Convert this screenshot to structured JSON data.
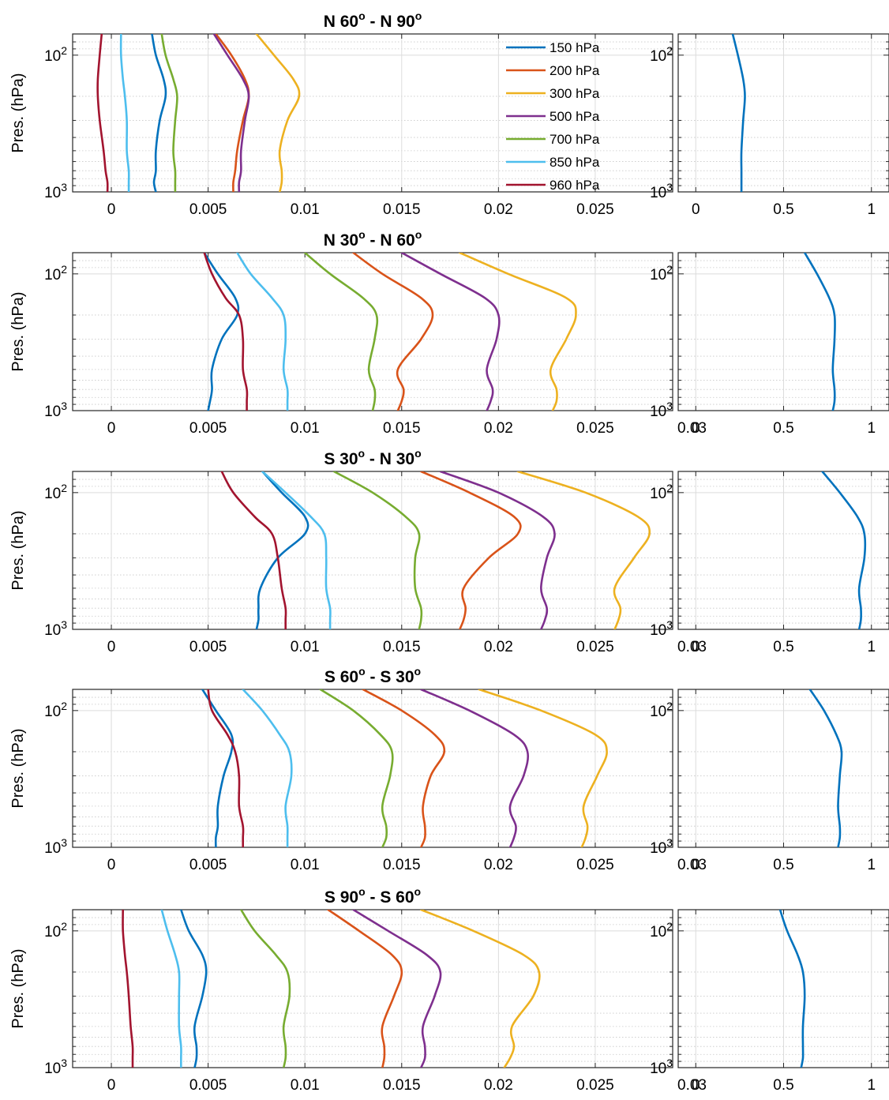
{
  "chart_data": {
    "type": "line",
    "y_axis": {
      "label": "Pres. (hPa)",
      "scale": "log",
      "range_hPa": [
        1000,
        70
      ],
      "reversed": true,
      "tick_labels": [
        "10^2",
        "10^3"
      ]
    },
    "grid": true,
    "legend": {
      "placement": "top-right",
      "entries": [
        "150 hPa",
        "200 hPa",
        "300 hPa",
        "500 hPa",
        "700 hPa",
        "850 hPa",
        "960 hPa"
      ]
    },
    "colors": {
      "150 hPa": "#0072BD",
      "200 hPa": "#D95319",
      "300 hPa": "#EDB120",
      "500 hPa": "#7E2F8E",
      "700 hPa": "#77AC30",
      "850 hPa": "#4DBEEE",
      "960 hPa": "#A2142F",
      "axis": "#262626",
      "grid": "#dcdcdc"
    },
    "pressure_levels_hPa": [
      70,
      100,
      150,
      200,
      300,
      500,
      700,
      850,
      1000
    ],
    "left_xlim": [
      -0.002,
      0.029
    ],
    "right_xlim": [
      -0.1,
      1.1
    ],
    "right_xticks": [
      0,
      0.5,
      1
    ],
    "right_xtick_labels": [
      "0",
      "0.5",
      "1"
    ],
    "panels": [
      {
        "title": "N 60",
        "title_tail": " - N 90",
        "left_xticks": [
          0,
          0.005,
          0.01,
          0.015,
          0.02,
          0.025
        ],
        "left_xtick_labels": [
          "0",
          "0.005",
          "0.01",
          "0.015",
          "0.02",
          "0.025"
        ],
        "series": [
          {
            "name": "150 hPa",
            "values": [
              0.0021,
              0.0023,
              0.0027,
              0.0028,
              0.0025,
              0.0023,
              0.0023,
              0.0022,
              0.0023
            ]
          },
          {
            "name": "200 hPa",
            "values": [
              0.0054,
              0.0062,
              0.0069,
              0.0071,
              0.0068,
              0.0065,
              0.0064,
              0.0063,
              0.0063
            ]
          },
          {
            "name": "300 hPa",
            "values": [
              0.0075,
              0.0084,
              0.0094,
              0.0097,
              0.0091,
              0.0087,
              0.0088,
              0.0088,
              0.0087
            ]
          },
          {
            "name": "500 hPa",
            "values": [
              0.0053,
              0.006,
              0.0068,
              0.0071,
              0.0069,
              0.0067,
              0.0067,
              0.0066,
              0.0066
            ]
          },
          {
            "name": "700 hPa",
            "values": [
              0.0026,
              0.0028,
              0.0032,
              0.0034,
              0.0033,
              0.0032,
              0.0033,
              0.0033,
              0.0033
            ]
          },
          {
            "name": "850 hPa",
            "values": [
              0.0005,
              0.0005,
              0.0006,
              0.0007,
              0.0008,
              0.0008,
              0.0009,
              0.0009,
              0.0009
            ]
          },
          {
            "name": "960 hPa",
            "values": [
              -0.0005,
              -0.0006,
              -0.0007,
              -0.0007,
              -0.0006,
              -0.0004,
              -0.0003,
              -0.0002,
              -0.0002
            ]
          }
        ],
        "ratio": [
          0.21,
          0.24,
          0.27,
          0.28,
          0.27,
          0.26,
          0.26,
          0.26,
          0.26
        ]
      },
      {
        "title": "N 30",
        "title_tail": " - N 60",
        "left_xticks": [
          0,
          0.005,
          0.01,
          0.015,
          0.02,
          0.025,
          0.03
        ],
        "left_xtick_labels": [
          "0",
          "0.005",
          "0.01",
          "0.015",
          "0.02",
          "0.025",
          "0.03"
        ],
        "series": [
          {
            "name": "150 hPa",
            "values": [
              0.0048,
              0.0055,
              0.0064,
              0.0065,
              0.0057,
              0.0052,
              0.0052,
              0.0051,
              0.005
            ]
          },
          {
            "name": "200 hPa",
            "values": [
              0.0125,
              0.014,
              0.016,
              0.0166,
              0.016,
              0.0148,
              0.0151,
              0.015,
              0.0148
            ]
          },
          {
            "name": "300 hPa",
            "values": [
              0.018,
              0.0205,
              0.0235,
              0.024,
              0.0235,
              0.0227,
              0.023,
              0.023,
              0.0228
            ]
          },
          {
            "name": "500 hPa",
            "values": [
              0.015,
              0.017,
              0.0193,
              0.02,
              0.0199,
              0.0194,
              0.0197,
              0.0196,
              0.0194
            ]
          },
          {
            "name": "700 hPa",
            "values": [
              0.01,
              0.0113,
              0.013,
              0.0137,
              0.0136,
              0.0133,
              0.0136,
              0.0136,
              0.0135
            ]
          },
          {
            "name": "850 hPa",
            "values": [
              0.0065,
              0.0072,
              0.0083,
              0.0089,
              0.009,
              0.0089,
              0.0091,
              0.0091,
              0.0091
            ]
          },
          {
            "name": "960 hPa",
            "values": [
              0.0048,
              0.0052,
              0.0059,
              0.0066,
              0.0068,
              0.0068,
              0.007,
              0.007,
              0.007
            ]
          }
        ],
        "ratio": [
          0.62,
          0.69,
          0.76,
          0.79,
          0.79,
          0.78,
          0.79,
          0.79,
          0.78
        ]
      },
      {
        "title": "S 30",
        "title_tail": " - N 30",
        "left_xticks": [
          0,
          0.005,
          0.01,
          0.015,
          0.02,
          0.025,
          0.03
        ],
        "left_xtick_labels": [
          "0",
          "0.005",
          "0.01",
          "0.015",
          "0.02",
          "0.025",
          "0.03"
        ],
        "series": [
          {
            "name": "150 hPa",
            "values": [
              0.0078,
              0.0088,
              0.01,
              0.01,
              0.0086,
              0.0077,
              0.0076,
              0.0076,
              0.0075
            ]
          },
          {
            "name": "200 hPa",
            "values": [
              0.016,
              0.0185,
              0.0208,
              0.021,
              0.0195,
              0.0182,
              0.0183,
              0.0182,
              0.018
            ]
          },
          {
            "name": "300 hPa",
            "values": [
              0.021,
              0.0245,
              0.0272,
              0.0278,
              0.027,
              0.026,
              0.0263,
              0.0262,
              0.026
            ]
          },
          {
            "name": "500 hPa",
            "values": [
              0.017,
              0.02,
              0.0223,
              0.0229,
              0.0225,
              0.0222,
              0.0225,
              0.0224,
              0.0222
            ]
          },
          {
            "name": "700 hPa",
            "values": [
              0.0115,
              0.0135,
              0.0152,
              0.0159,
              0.0157,
              0.0157,
              0.016,
              0.016,
              0.0159
            ]
          },
          {
            "name": "850 hPa",
            "values": [
              0.0078,
              0.009,
              0.0103,
              0.011,
              0.0111,
              0.0111,
              0.0113,
              0.0113,
              0.0113
            ]
          },
          {
            "name": "960 hPa",
            "values": [
              0.0057,
              0.0063,
              0.0074,
              0.0083,
              0.0086,
              0.0088,
              0.009,
              0.009,
              0.009
            ]
          }
        ],
        "ratio": [
          0.72,
          0.82,
          0.92,
          0.96,
          0.96,
          0.93,
          0.94,
          0.94,
          0.93
        ]
      },
      {
        "title": "S 60",
        "title_tail": " - S 30",
        "left_xticks": [
          0,
          0.005,
          0.01,
          0.015,
          0.02,
          0.025,
          0.03
        ],
        "left_xtick_labels": [
          "0",
          "0.005",
          "0.01",
          "0.015",
          "0.02",
          "0.025",
          "0.03"
        ],
        "series": [
          {
            "name": "150 hPa",
            "values": [
              0.0047,
              0.0054,
              0.0062,
              0.0062,
              0.0058,
              0.0055,
              0.0055,
              0.0054,
              0.0054
            ]
          },
          {
            "name": "200 hPa",
            "values": [
              0.013,
              0.015,
              0.0167,
              0.0172,
              0.0165,
              0.0161,
              0.0162,
              0.0162,
              0.016
            ]
          },
          {
            "name": "300 hPa",
            "values": [
              0.019,
              0.0222,
              0.025,
              0.0256,
              0.0251,
              0.0244,
              0.0246,
              0.0245,
              0.0243
            ]
          },
          {
            "name": "500 hPa",
            "values": [
              0.016,
              0.0185,
              0.0208,
              0.0215,
              0.0213,
              0.0206,
              0.0209,
              0.0208,
              0.0206
            ]
          },
          {
            "name": "700 hPa",
            "values": [
              0.0108,
              0.0125,
              0.0139,
              0.0145,
              0.0144,
              0.014,
              0.0142,
              0.0142,
              0.014
            ]
          },
          {
            "name": "850 hPa",
            "values": [
              0.0068,
              0.0078,
              0.0087,
              0.0092,
              0.0093,
              0.009,
              0.0091,
              0.0091,
              0.0091
            ]
          },
          {
            "name": "960 hPa",
            "values": [
              0.005,
              0.0052,
              0.006,
              0.0064,
              0.0066,
              0.0066,
              0.0068,
              0.0068,
              0.0068
            ]
          }
        ],
        "ratio": [
          0.65,
          0.73,
          0.8,
          0.83,
          0.82,
          0.81,
          0.82,
          0.82,
          0.81
        ]
      },
      {
        "title": "S 90",
        "title_tail": " - S 60",
        "left_xticks": [
          0,
          0.005,
          0.01,
          0.015,
          0.02,
          0.025,
          0.03
        ],
        "left_xtick_labels": [
          "0",
          "0.005",
          "0.01",
          "0.015",
          "0.02",
          "0.025",
          "0.03"
        ],
        "series": [
          {
            "name": "150 hPa",
            "values": [
              0.0036,
              0.004,
              0.0047,
              0.0049,
              0.0047,
              0.0043,
              0.0044,
              0.0044,
              0.0043
            ]
          },
          {
            "name": "200 hPa",
            "values": [
              0.0112,
              0.0128,
              0.0145,
              0.015,
              0.0146,
              0.014,
              0.0141,
              0.0141,
              0.014
            ]
          },
          {
            "name": "300 hPa",
            "values": [
              0.016,
              0.0187,
              0.0213,
              0.0221,
              0.0218,
              0.0207,
              0.0208,
              0.0206,
              0.0203
            ]
          },
          {
            "name": "500 hPa",
            "values": [
              0.0125,
              0.0143,
              0.0163,
              0.017,
              0.0167,
              0.0161,
              0.0162,
              0.0162,
              0.016
            ]
          },
          {
            "name": "700 hPa",
            "values": [
              0.0067,
              0.0074,
              0.0085,
              0.0091,
              0.0092,
              0.0089,
              0.009,
              0.009,
              0.0089
            ]
          },
          {
            "name": "850 hPa",
            "values": [
              0.0026,
              0.0029,
              0.0033,
              0.0035,
              0.0035,
              0.0035,
              0.0036,
              0.0036,
              0.0036
            ]
          },
          {
            "name": "960 hPa",
            "values": [
              0.0006,
              0.0006,
              0.0007,
              0.0008,
              0.0009,
              0.001,
              0.0011,
              0.0011,
              0.0011
            ]
          }
        ],
        "ratio": [
          0.48,
          0.52,
          0.58,
          0.61,
          0.62,
          0.61,
          0.61,
          0.61,
          0.6
        ]
      }
    ]
  }
}
